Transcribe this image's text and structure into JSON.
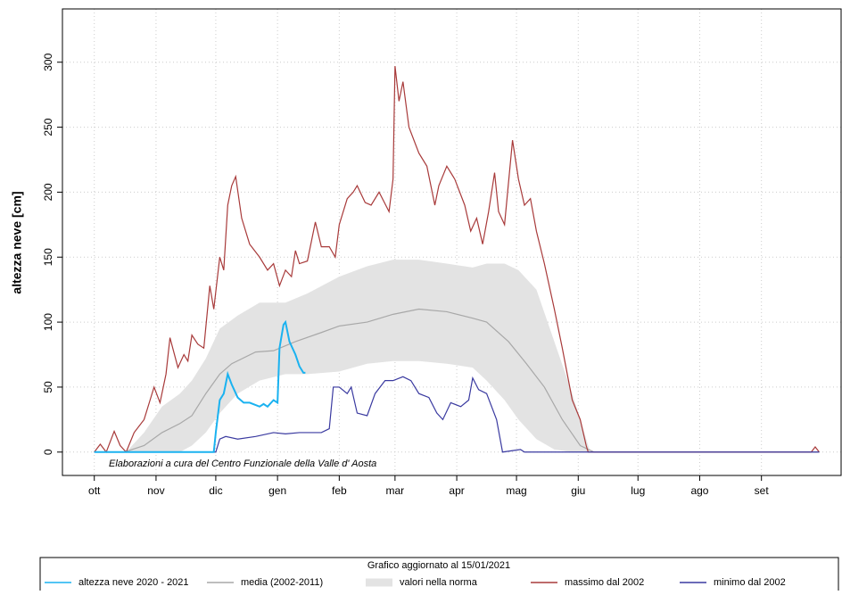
{
  "chart_data": {
    "type": "line",
    "y_label": "altezza neve [cm]",
    "annotation": "Elaborazioni a cura del Centro Funzionale della Valle d' Aosta",
    "legend_title": "Grafico aggiornato al 15/01/2021",
    "xlim": [
      -16,
      375
    ],
    "ylim": [
      -18,
      341
    ],
    "xticks": [
      {
        "value": 0,
        "label": "ott"
      },
      {
        "value": 31,
        "label": "nov"
      },
      {
        "value": 61,
        "label": "dic"
      },
      {
        "value": 92,
        "label": "gen"
      },
      {
        "value": 123,
        "label": "feb"
      },
      {
        "value": 151,
        "label": "mar"
      },
      {
        "value": 182,
        "label": "apr"
      },
      {
        "value": 212,
        "label": "mag"
      },
      {
        "value": 243,
        "label": "giu"
      },
      {
        "value": 273,
        "label": "lug"
      },
      {
        "value": 304,
        "label": "ago"
      },
      {
        "value": 335,
        "label": "set"
      }
    ],
    "yticks": [
      0,
      50,
      100,
      150,
      200,
      250,
      300
    ],
    "grid": true,
    "legend": "bottom",
    "series": [
      {
        "name": "altezza neve  2020 - 2021",
        "color": "#1ab2f0",
        "x": [
          0,
          60,
          61,
          63,
          65,
          67,
          69,
          72,
          75,
          78,
          83,
          85,
          87,
          90,
          92,
          93,
          95,
          96,
          98,
          101,
          103,
          105,
          106
        ],
        "values": [
          0,
          0,
          15,
          40,
          45,
          60,
          52,
          42,
          38,
          38,
          35,
          37,
          35,
          40,
          38,
          80,
          98,
          100,
          85,
          75,
          66,
          61,
          61
        ]
      },
      {
        "name": "media (2002-2011)",
        "color": "#a8a8a8",
        "x": [
          15,
          25,
          34,
          43,
          49,
          56,
          63,
          69,
          81,
          90,
          101,
          114,
          123,
          137,
          150,
          163,
          177,
          190,
          197,
          208,
          217,
          226,
          235,
          244,
          251,
          364
        ],
        "values": [
          0,
          5,
          15,
          22,
          28,
          45,
          60,
          68,
          77,
          78,
          85,
          92,
          97,
          100,
          106,
          110,
          108,
          103,
          100,
          85,
          68,
          50,
          25,
          5,
          0,
          0
        ]
      },
      {
        "name": "valori nella norma",
        "color": "#e3e3e3",
        "type": "band",
        "x": [
          16,
          25,
          34,
          43,
          49,
          56,
          63,
          72,
          83,
          96,
          107,
          123,
          137,
          150,
          163,
          177,
          190,
          197,
          206,
          213,
          222,
          231,
          240,
          249
        ],
        "lower": [
          0,
          0,
          0,
          0,
          5,
          15,
          30,
          45,
          55,
          60,
          60,
          62,
          68,
          70,
          70,
          68,
          65,
          55,
          40,
          25,
          10,
          2,
          0,
          0
        ],
        "upper": [
          0,
          15,
          35,
          45,
          55,
          72,
          95,
          105,
          115,
          115,
          122,
          135,
          143,
          148,
          148,
          145,
          142,
          145,
          145,
          140,
          125,
          85,
          45,
          0
        ]
      },
      {
        "name": "massimo dal 2002",
        "color": "#a83a3a",
        "x": [
          0,
          3,
          6,
          10,
          13,
          16,
          20,
          25,
          28,
          30,
          33,
          36,
          38,
          42,
          45,
          47,
          49,
          52,
          55,
          58,
          60,
          63,
          65,
          67,
          69,
          71,
          74,
          78,
          83,
          87,
          90,
          93,
          96,
          99,
          101,
          103,
          107,
          111,
          114,
          118,
          121,
          123,
          127,
          130,
          132,
          136,
          139,
          143,
          148,
          150,
          151,
          153,
          155,
          158,
          163,
          167,
          171,
          173,
          177,
          181,
          186,
          189,
          192,
          195,
          198,
          201,
          203,
          206,
          210,
          213,
          216,
          219,
          222,
          226,
          231,
          235,
          240,
          244,
          247,
          248,
          360,
          362,
          364
        ],
        "values": [
          0,
          6,
          0,
          16,
          5,
          0,
          15,
          25,
          40,
          50,
          38,
          60,
          88,
          65,
          75,
          70,
          90,
          83,
          80,
          128,
          110,
          150,
          140,
          190,
          205,
          212,
          180,
          160,
          150,
          140,
          145,
          128,
          140,
          135,
          155,
          145,
          147,
          177,
          158,
          158,
          150,
          175,
          195,
          200,
          205,
          192,
          190,
          200,
          185,
          210,
          297,
          270,
          285,
          250,
          230,
          220,
          190,
          205,
          220,
          210,
          190,
          170,
          180,
          160,
          185,
          215,
          185,
          175,
          240,
          210,
          190,
          195,
          170,
          145,
          110,
          80,
          40,
          25,
          5,
          0,
          0,
          4,
          0
        ]
      },
      {
        "name": "minimo dal 2002",
        "color": "#3a3aa0",
        "x": [
          0,
          61,
          63,
          66,
          72,
          81,
          90,
          96,
          103,
          114,
          118,
          120,
          123,
          127,
          129,
          132,
          137,
          141,
          146,
          150,
          155,
          159,
          163,
          168,
          172,
          175,
          179,
          184,
          188,
          190,
          193,
          197,
          202,
          205,
          214,
          216,
          364
        ],
        "values": [
          0,
          0,
          10,
          12,
          10,
          12,
          15,
          14,
          15,
          15,
          18,
          50,
          50,
          45,
          50,
          30,
          28,
          45,
          55,
          55,
          58,
          55,
          45,
          42,
          30,
          25,
          38,
          35,
          40,
          57,
          48,
          45,
          25,
          0,
          2,
          0,
          0
        ]
      }
    ]
  }
}
